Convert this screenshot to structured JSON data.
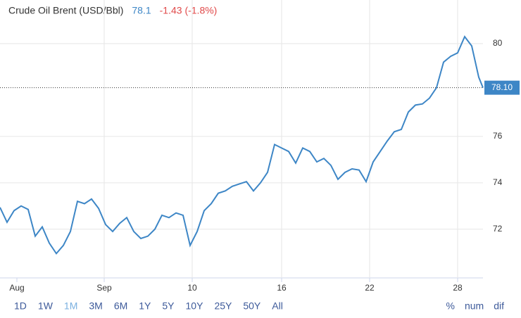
{
  "chart_data": {
    "type": "line",
    "title": "Crude Oil Brent (USD/Bbl)",
    "last": 78.1,
    "change": "-1.43 (-1.8%)",
    "price_label": {
      "value": 78.1,
      "label": "78.10"
    },
    "series": [
      {
        "name": "Crude Oil Brent",
        "color": "#3d86c6",
        "x": [
          0,
          1,
          2,
          3,
          4,
          5,
          6,
          7,
          8,
          9,
          10,
          11,
          12,
          13,
          14,
          15,
          16,
          17,
          18,
          19,
          20,
          21,
          22,
          23,
          24,
          25,
          26,
          27,
          28,
          29,
          30,
          31,
          32,
          33,
          34,
          35,
          36,
          37,
          38,
          39,
          40,
          41,
          42,
          43,
          44,
          45,
          46,
          47,
          48,
          49,
          50,
          51,
          52,
          53,
          54,
          55,
          56,
          57,
          58,
          59,
          60,
          61,
          62,
          63,
          64,
          65,
          66,
          67,
          68,
          68.6
        ],
        "values": [
          72.94,
          72.3,
          72.8,
          73.0,
          72.85,
          71.7,
          72.1,
          71.4,
          70.95,
          71.3,
          71.9,
          73.2,
          73.1,
          73.3,
          72.9,
          72.2,
          71.9,
          72.25,
          72.5,
          71.9,
          71.6,
          71.7,
          72.0,
          72.6,
          72.5,
          72.7,
          72.6,
          71.3,
          71.9,
          72.8,
          73.1,
          73.55,
          73.65,
          73.85,
          73.95,
          74.05,
          73.65,
          74.0,
          74.45,
          75.65,
          75.5,
          75.35,
          74.85,
          75.5,
          75.35,
          74.9,
          75.05,
          74.75,
          74.15,
          74.45,
          74.6,
          74.55,
          74.05,
          74.9,
          75.35,
          75.8,
          76.2,
          76.3,
          77.05,
          77.35,
          77.4,
          77.65,
          78.1,
          79.2,
          79.45,
          79.6,
          80.3,
          79.9,
          78.55,
          78.1
        ]
      }
    ],
    "xlim": [
      0,
      68.6
    ],
    "xticks": [
      {
        "value": 2.4,
        "label": "Aug"
      },
      {
        "value": 14.8,
        "label": "Sep"
      },
      {
        "value": 27.3,
        "label": "10"
      },
      {
        "value": 40,
        "label": "16"
      },
      {
        "value": 52.5,
        "label": "22"
      },
      {
        "value": 65,
        "label": "28"
      }
    ],
    "ylim": [
      69.9,
      81.88
    ],
    "yticks": [
      72,
      74,
      76,
      80
    ],
    "grid": true,
    "ranges": [
      "1D",
      "1W",
      "1M",
      "3M",
      "6M",
      "1Y",
      "5Y",
      "10Y",
      "25Y",
      "50Y",
      "All"
    ],
    "active_range": 2,
    "modes": [
      "%",
      "num",
      "dif"
    ]
  }
}
